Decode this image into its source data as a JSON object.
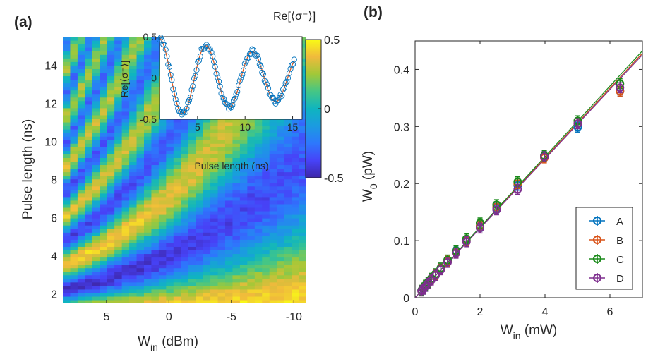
{
  "panels": {
    "a": {
      "label": "(a)"
    },
    "b": {
      "label": "(b)"
    }
  },
  "chart_data": [
    {
      "type": "heatmap",
      "panel": "(a)",
      "xlabel": "W",
      "xlabel_sub": "in",
      "xlabel_unit": " (dBm)",
      "ylabel": "Pulse length (ns)",
      "x_reversed": true,
      "xlim": [
        8.5,
        -11
      ],
      "ylim": [
        1.5,
        15.5
      ],
      "xticks": [
        5,
        0,
        -5,
        -10
      ],
      "xtick_labels": [
        "5",
        "0",
        "-5",
        "-10"
      ],
      "yticks": [
        2,
        4,
        6,
        8,
        10,
        12,
        14
      ],
      "ytick_labels": [
        "2",
        "4",
        "6",
        "8",
        "10",
        "12",
        "14"
      ],
      "colormap": "parula",
      "colorbar": {
        "title": "Re[⟨σ⁻⟩]",
        "range": [
          -0.5,
          0.5
        ],
        "ticks": [
          0.5,
          0,
          -0.5
        ],
        "tick_labels": [
          "0.5",
          "0",
          "-0.5"
        ]
      },
      "model": "Rabi oscillation of Re[⟨σ⁻⟩] vs pulse length; frequency increases with drive power",
      "inset": {
        "type": "scatter+line",
        "ylabel": "Re[⟨σ⁻⟩]",
        "xlabel": "Pulse length (ns)",
        "xlim": [
          1,
          16
        ],
        "ylim": [
          -0.5,
          0.5
        ],
        "xticks": [
          5,
          10,
          15
        ],
        "xtick_labels": [
          "5",
          "10",
          "15"
        ],
        "yticks": [
          0.5,
          0,
          -0.5
        ],
        "ytick_labels": [
          "0.5",
          "0",
          "-0.5"
        ],
        "marker_color": "#0072BD",
        "fit_color": "#D95319"
      }
    },
    {
      "type": "scatter",
      "panel": "(b)",
      "xlabel": "W",
      "xlabel_sub": "in",
      "xlabel_unit": " (mW)",
      "ylabel": "W",
      "ylabel_sub": "0",
      "ylabel_unit": " (pW)",
      "xlim": [
        0,
        7
      ],
      "ylim": [
        0,
        0.45
      ],
      "xticks": [
        0,
        2,
        4,
        6
      ],
      "xtick_labels": [
        "0",
        "2",
        "4",
        "6"
      ],
      "yticks": [
        0,
        0.1,
        0.2,
        0.3,
        0.4
      ],
      "ytick_labels": [
        "0",
        "0.1",
        "0.2",
        "0.3",
        "0.4"
      ],
      "legend_position": "bottom-right",
      "series": [
        {
          "name": "A",
          "color": "#0072BD",
          "x": [
            0.2,
            0.25,
            0.32,
            0.4,
            0.5,
            0.63,
            0.79,
            1.0,
            1.26,
            1.58,
            2.0,
            2.51,
            3.16,
            3.98,
            5.01,
            6.31
          ],
          "y": [
            0.012,
            0.015,
            0.02,
            0.026,
            0.033,
            0.041,
            0.05,
            0.063,
            0.083,
            0.1,
            0.125,
            0.157,
            0.197,
            0.248,
            0.299,
            0.362
          ],
          "fit_slope": 0.0612
        },
        {
          "name": "B",
          "color": "#D95319",
          "x": [
            0.2,
            0.25,
            0.32,
            0.4,
            0.5,
            0.63,
            0.79,
            1.0,
            1.26,
            1.58,
            2.0,
            2.51,
            3.16,
            3.98,
            5.01,
            6.31
          ],
          "y": [
            0.012,
            0.016,
            0.021,
            0.026,
            0.032,
            0.04,
            0.05,
            0.064,
            0.079,
            0.1,
            0.126,
            0.159,
            0.2,
            0.245,
            0.305,
            0.362
          ],
          "fit_slope": 0.0612
        },
        {
          "name": "C",
          "color": "#1A8A1A",
          "x": [
            0.2,
            0.25,
            0.32,
            0.4,
            0.5,
            0.63,
            0.79,
            1.0,
            1.26,
            1.58,
            2.0,
            2.51,
            3.16,
            3.98,
            5.01,
            6.31
          ],
          "y": [
            0.013,
            0.017,
            0.022,
            0.027,
            0.034,
            0.042,
            0.052,
            0.066,
            0.082,
            0.103,
            0.131,
            0.163,
            0.203,
            0.249,
            0.31,
            0.375
          ],
          "fit_slope": 0.0618
        },
        {
          "name": "D",
          "color": "#7E2F8E",
          "x": [
            0.2,
            0.25,
            0.32,
            0.4,
            0.5,
            0.63,
            0.79,
            1.0,
            1.26,
            1.58,
            2.0,
            2.51,
            3.16,
            3.98,
            5.01,
            6.31
          ],
          "y": [
            0.012,
            0.015,
            0.02,
            0.025,
            0.031,
            0.039,
            0.049,
            0.062,
            0.078,
            0.098,
            0.122,
            0.154,
            0.19,
            0.247,
            0.305,
            0.368
          ],
          "fit_slope": 0.0608
        }
      ]
    }
  ]
}
